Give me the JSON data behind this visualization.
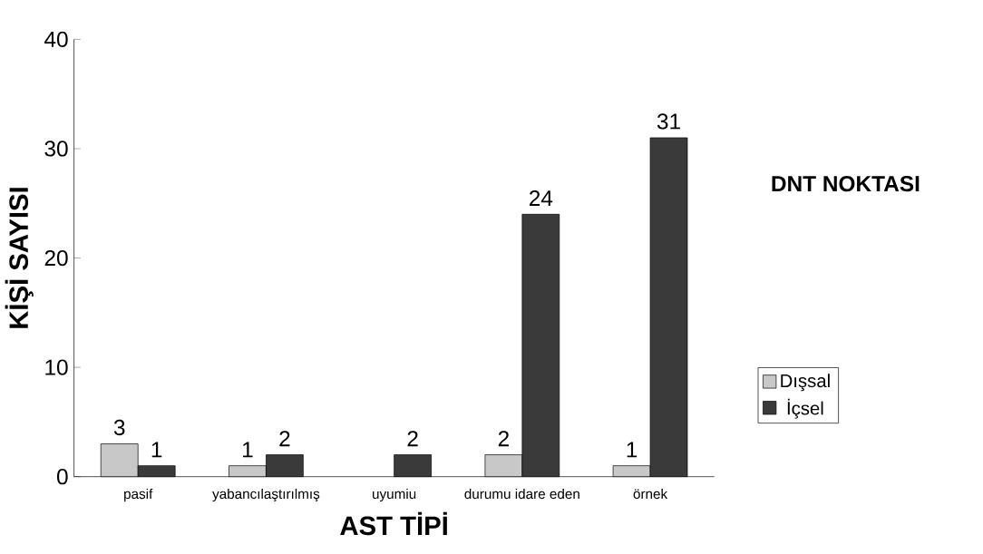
{
  "chart_data": {
    "type": "bar",
    "title": "DNT NOKTASI",
    "xlabel": "AST TİPİ",
    "ylabel": "KİŞİ SAYISI",
    "categories": [
      "pasif",
      "yabancılaştırılmış",
      "uyumiu",
      "durumu idare eden",
      "örnek"
    ],
    "series": [
      {
        "name": "Dışsal",
        "color": "#c8c8c8",
        "values": [
          3,
          1,
          null,
          2,
          1
        ]
      },
      {
        "name": "İçsel",
        "color": "#3a3a3a",
        "values": [
          1,
          2,
          2,
          24,
          31
        ]
      }
    ],
    "ylim": [
      0,
      40
    ],
    "yticks": [
      0,
      10,
      20,
      30,
      40
    ],
    "data_labels": true,
    "legend": "right",
    "grid": false
  }
}
